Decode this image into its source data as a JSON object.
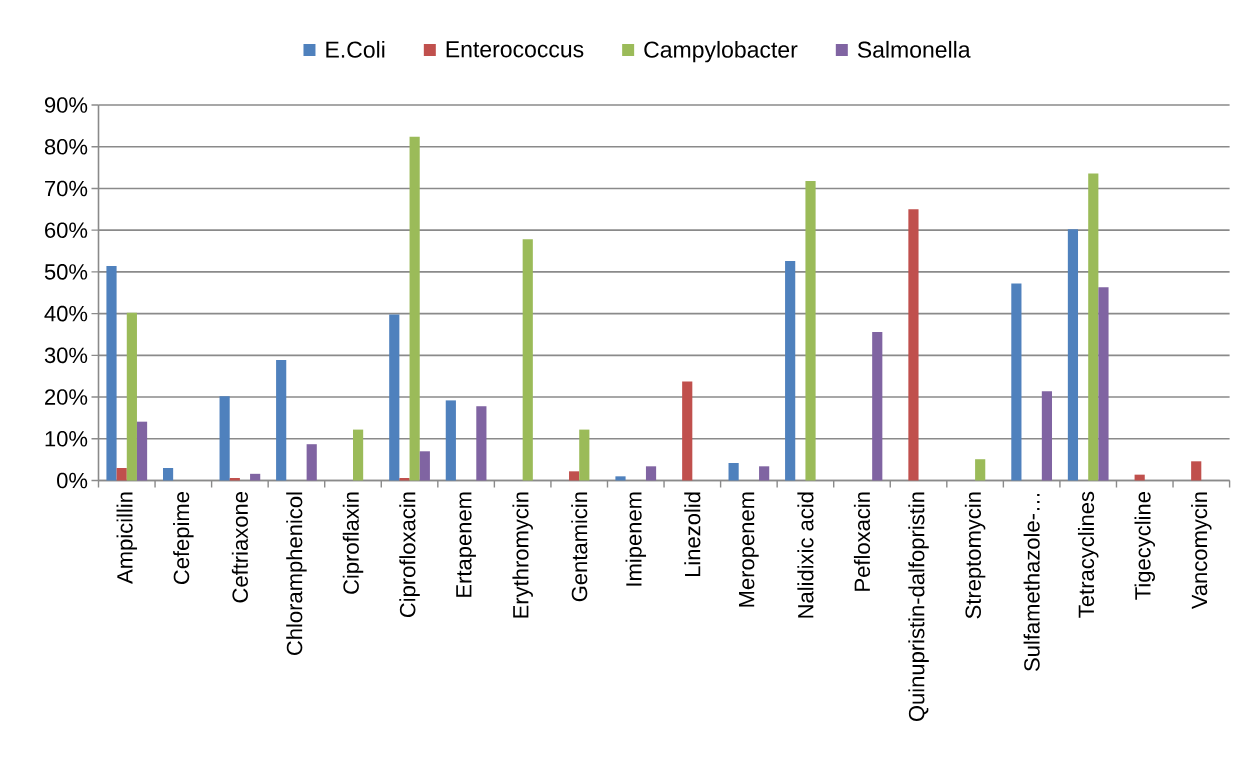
{
  "chart_data": {
    "type": "bar",
    "categories": [
      "Ampicillin",
      "Cefepime",
      "Ceftriaxone",
      "Chloramphenicol",
      "Ciproflaxin",
      "Ciprofloxacin",
      "Ertapenem",
      "Erythromycin",
      "Gentamicin",
      "Imipenem",
      "Linezolid",
      "Meropenem",
      "Nalidixic acid",
      "Pefloxacin",
      "Quinupristin-dalfopristin",
      "Streptomycin",
      "Sulfamethazole-…",
      "Tetracyclines",
      "Tigecycline",
      "Vancomycin"
    ],
    "series": [
      {
        "name": "E.Coli",
        "color": "#4f81bd",
        "values": [
          51.4,
          3.0,
          20.2,
          28.9,
          null,
          39.8,
          19.2,
          null,
          null,
          1.0,
          null,
          4.2,
          52.6,
          null,
          null,
          null,
          47.2,
          60.2,
          null,
          null
        ]
      },
      {
        "name": "Enterococcus",
        "color": "#c0504d",
        "values": [
          3.0,
          null,
          0.6,
          null,
          null,
          0.6,
          null,
          null,
          2.2,
          null,
          23.7,
          null,
          null,
          null,
          65.0,
          null,
          null,
          null,
          1.4,
          4.6
        ]
      },
      {
        "name": "Campylobacter",
        "color": "#9bbb59",
        "values": [
          40.2,
          null,
          null,
          null,
          12.2,
          82.4,
          null,
          57.8,
          12.2,
          null,
          null,
          null,
          71.8,
          null,
          null,
          5.1,
          null,
          73.6,
          null,
          null
        ]
      },
      {
        "name": "Salmonella",
        "color": "#8064a2",
        "values": [
          14.1,
          null,
          1.6,
          8.7,
          null,
          7.0,
          17.8,
          null,
          null,
          3.4,
          null,
          3.4,
          null,
          35.6,
          null,
          null,
          21.4,
          46.3,
          null,
          null
        ]
      }
    ],
    "ylim": [
      0,
      90
    ],
    "yticks": [
      {
        "value": 0,
        "label": "0%"
      },
      {
        "value": 10,
        "label": "10%"
      },
      {
        "value": 20,
        "label": "20%"
      },
      {
        "value": 30,
        "label": "30%"
      },
      {
        "value": 40,
        "label": "40%"
      },
      {
        "value": 50,
        "label": "50%"
      },
      {
        "value": 60,
        "label": "60%"
      },
      {
        "value": 70,
        "label": "70%"
      },
      {
        "value": 80,
        "label": "80%"
      },
      {
        "value": 90,
        "label": "90%"
      }
    ],
    "grid": "y",
    "legend": "top"
  }
}
